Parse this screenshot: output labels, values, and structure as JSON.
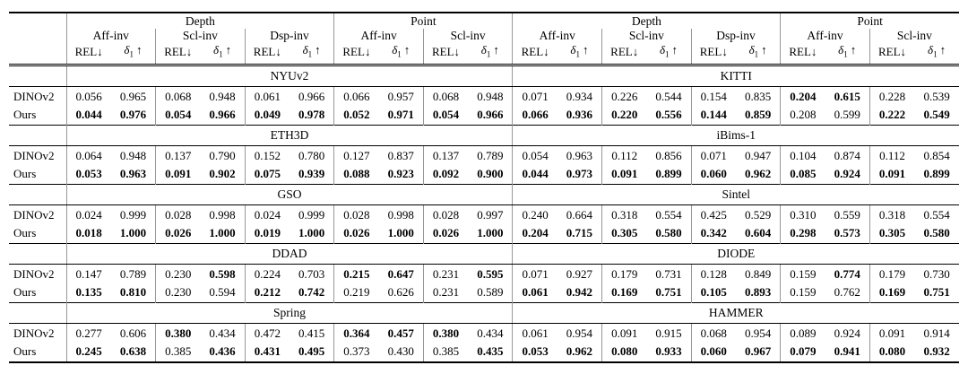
{
  "table": {
    "group_headers": [
      "Depth",
      "Point",
      "Depth",
      "Point"
    ],
    "group_spans": [
      6,
      4,
      6,
      4
    ],
    "inv_headers": [
      "Aff-inv",
      "Scl-inv",
      "Dsp-inv",
      "Aff-inv",
      "Scl-inv",
      "Aff-inv",
      "Scl-inv",
      "Dsp-inv",
      "Aff-inv",
      "Scl-inv"
    ],
    "metric_rel": "REL↓",
    "metric_delta_base": "δ",
    "metric_delta_sub": "1",
    "metric_delta_arrow": "↑",
    "sections": [
      {
        "left_dataset": "NYUv2",
        "right_dataset": "KITTI",
        "rows": [
          {
            "label": "DINOv2",
            "values": [
              "0.056",
              "0.965",
              "0.068",
              "0.948",
              "0.061",
              "0.966",
              "0.066",
              "0.957",
              "0.068",
              "0.948",
              "0.071",
              "0.934",
              "0.226",
              "0.544",
              "0.154",
              "0.835",
              "0.204",
              "0.615",
              "0.228",
              "0.539"
            ],
            "bold": [
              0,
              0,
              0,
              0,
              0,
              0,
              0,
              0,
              0,
              0,
              0,
              0,
              0,
              0,
              0,
              0,
              1,
              1,
              0,
              0
            ]
          },
          {
            "label": "Ours",
            "values": [
              "0.044",
              "0.976",
              "0.054",
              "0.966",
              "0.049",
              "0.978",
              "0.052",
              "0.971",
              "0.054",
              "0.966",
              "0.066",
              "0.936",
              "0.220",
              "0.556",
              "0.144",
              "0.859",
              "0.208",
              "0.599",
              "0.222",
              "0.549"
            ],
            "bold": [
              1,
              1,
              1,
              1,
              1,
              1,
              1,
              1,
              1,
              1,
              1,
              1,
              1,
              1,
              1,
              1,
              0,
              0,
              1,
              1
            ]
          }
        ]
      },
      {
        "left_dataset": "ETH3D",
        "right_dataset": "iBims-1",
        "rows": [
          {
            "label": "DINOv2",
            "values": [
              "0.064",
              "0.948",
              "0.137",
              "0.790",
              "0.152",
              "0.780",
              "0.127",
              "0.837",
              "0.137",
              "0.789",
              "0.054",
              "0.963",
              "0.112",
              "0.856",
              "0.071",
              "0.947",
              "0.104",
              "0.874",
              "0.112",
              "0.854"
            ],
            "bold": [
              0,
              0,
              0,
              0,
              0,
              0,
              0,
              0,
              0,
              0,
              0,
              0,
              0,
              0,
              0,
              0,
              0,
              0,
              0,
              0
            ]
          },
          {
            "label": "Ours",
            "values": [
              "0.053",
              "0.963",
              "0.091",
              "0.902",
              "0.075",
              "0.939",
              "0.088",
              "0.923",
              "0.092",
              "0.900",
              "0.044",
              "0.973",
              "0.091",
              "0.899",
              "0.060",
              "0.962",
              "0.085",
              "0.924",
              "0.091",
              "0.899"
            ],
            "bold": [
              1,
              1,
              1,
              1,
              1,
              1,
              1,
              1,
              1,
              1,
              1,
              1,
              1,
              1,
              1,
              1,
              1,
              1,
              1,
              1
            ]
          }
        ]
      },
      {
        "left_dataset": "GSO",
        "right_dataset": "Sintel",
        "rows": [
          {
            "label": "DINOv2",
            "values": [
              "0.024",
              "0.999",
              "0.028",
              "0.998",
              "0.024",
              "0.999",
              "0.028",
              "0.998",
              "0.028",
              "0.997",
              "0.240",
              "0.664",
              "0.318",
              "0.554",
              "0.425",
              "0.529",
              "0.310",
              "0.559",
              "0.318",
              "0.554"
            ],
            "bold": [
              0,
              0,
              0,
              0,
              0,
              0,
              0,
              0,
              0,
              0,
              0,
              0,
              0,
              0,
              0,
              0,
              0,
              0,
              0,
              0
            ]
          },
          {
            "label": "Ours",
            "values": [
              "0.018",
              "1.000",
              "0.026",
              "1.000",
              "0.019",
              "1.000",
              "0.026",
              "1.000",
              "0.026",
              "1.000",
              "0.204",
              "0.715",
              "0.305",
              "0.580",
              "0.342",
              "0.604",
              "0.298",
              "0.573",
              "0.305",
              "0.580"
            ],
            "bold": [
              1,
              1,
              1,
              1,
              1,
              1,
              1,
              1,
              1,
              1,
              1,
              1,
              1,
              1,
              1,
              1,
              1,
              1,
              1,
              1
            ]
          }
        ]
      },
      {
        "left_dataset": "DDAD",
        "right_dataset": "DIODE",
        "rows": [
          {
            "label": "DINOv2",
            "values": [
              "0.147",
              "0.789",
              "0.230",
              "0.598",
              "0.224",
              "0.703",
              "0.215",
              "0.647",
              "0.231",
              "0.595",
              "0.071",
              "0.927",
              "0.179",
              "0.731",
              "0.128",
              "0.849",
              "0.159",
              "0.774",
              "0.179",
              "0.730"
            ],
            "bold": [
              0,
              0,
              0,
              1,
              0,
              0,
              1,
              1,
              0,
              1,
              0,
              0,
              0,
              0,
              0,
              0,
              0,
              1,
              0,
              0
            ]
          },
          {
            "label": "Ours",
            "values": [
              "0.135",
              "0.810",
              "0.230",
              "0.594",
              "0.212",
              "0.742",
              "0.219",
              "0.626",
              "0.231",
              "0.589",
              "0.061",
              "0.942",
              "0.169",
              "0.751",
              "0.105",
              "0.893",
              "0.159",
              "0.762",
              "0.169",
              "0.751"
            ],
            "bold": [
              1,
              1,
              0,
              0,
              1,
              1,
              0,
              0,
              0,
              0,
              1,
              1,
              1,
              1,
              1,
              1,
              0,
              0,
              1,
              1
            ]
          }
        ]
      },
      {
        "left_dataset": "Spring",
        "right_dataset": "HAMMER",
        "rows": [
          {
            "label": "DINOv2",
            "values": [
              "0.277",
              "0.606",
              "0.380",
              "0.434",
              "0.472",
              "0.415",
              "0.364",
              "0.457",
              "0.380",
              "0.434",
              "0.061",
              "0.954",
              "0.091",
              "0.915",
              "0.068",
              "0.954",
              "0.089",
              "0.924",
              "0.091",
              "0.914"
            ],
            "bold": [
              0,
              0,
              1,
              0,
              0,
              0,
              1,
              1,
              1,
              0,
              0,
              0,
              0,
              0,
              0,
              0,
              0,
              0,
              0,
              0
            ]
          },
          {
            "label": "Ours",
            "values": [
              "0.245",
              "0.638",
              "0.385",
              "0.436",
              "0.431",
              "0.495",
              "0.373",
              "0.430",
              "0.385",
              "0.435",
              "0.053",
              "0.962",
              "0.080",
              "0.933",
              "0.060",
              "0.967",
              "0.079",
              "0.941",
              "0.080",
              "0.932"
            ],
            "bold": [
              1,
              1,
              0,
              1,
              1,
              1,
              0,
              0,
              0,
              1,
              1,
              1,
              1,
              1,
              1,
              1,
              1,
              1,
              1,
              1
            ]
          }
        ]
      }
    ]
  }
}
